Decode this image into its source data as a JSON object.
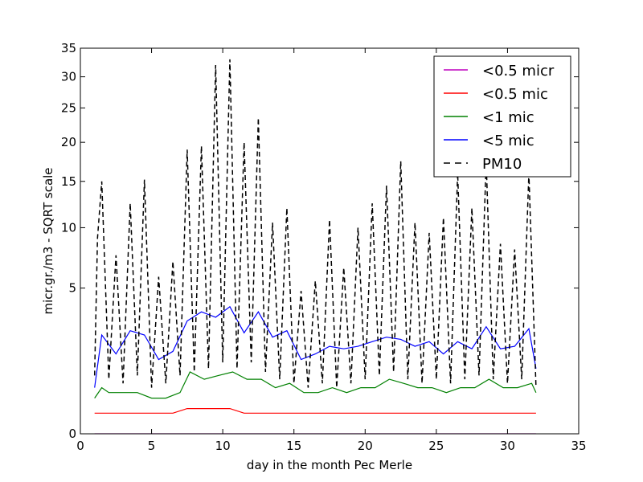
{
  "chart_data": {
    "type": "line",
    "xlabel": "day in the month Pec Merle",
    "ylabel": "micr.gr./m3 - SQRT scale",
    "y_scale": "sqrt",
    "xlim": [
      0,
      35
    ],
    "ylim": [
      0,
      35
    ],
    "x_ticks": [
      "0",
      "5",
      "10",
      "15",
      "20",
      "25",
      "30",
      "35"
    ],
    "y_ticks": [
      "0",
      "5",
      "10",
      "15",
      "20",
      "25",
      "30",
      "35"
    ],
    "legend_position": "top-right",
    "grid": false,
    "series": [
      {
        "name": "<0.5 micr",
        "color": "#bf00bf",
        "style": "solid",
        "x": [
          1.0,
          32.0
        ],
        "values": [
          0.0,
          0.0
        ]
      },
      {
        "name": "<0.5 mic",
        "color": "#ff0000",
        "style": "solid",
        "x": [
          1.0,
          1.5,
          2.5,
          3.5,
          4.5,
          5.5,
          6.5,
          7.5,
          8.5,
          9.5,
          10.5,
          11.5,
          12.5,
          13.5,
          14.5,
          15.5,
          16.5,
          17.5,
          18.5,
          19.5,
          20.5,
          21.5,
          22.5,
          23.5,
          24.5,
          25.5,
          26.5,
          27.5,
          28.5,
          29.5,
          30.5,
          31.5,
          32.0
        ],
        "values": [
          0.1,
          0.1,
          0.1,
          0.1,
          0.1,
          0.1,
          0.1,
          0.15,
          0.15,
          0.15,
          0.15,
          0.1,
          0.1,
          0.1,
          0.1,
          0.1,
          0.1,
          0.1,
          0.1,
          0.1,
          0.1,
          0.1,
          0.1,
          0.1,
          0.1,
          0.1,
          0.1,
          0.1,
          0.1,
          0.1,
          0.1,
          0.1,
          0.1
        ]
      },
      {
        "name": "<1 mic",
        "color": "#008000",
        "style": "solid",
        "x": [
          1.0,
          1.5,
          2.0,
          3.0,
          4.0,
          5.0,
          6.0,
          7.0,
          7.7,
          8.7,
          9.7,
          10.7,
          11.7,
          12.7,
          13.7,
          14.7,
          15.7,
          16.7,
          17.7,
          18.7,
          19.7,
          20.7,
          21.7,
          22.7,
          23.7,
          24.7,
          25.7,
          26.7,
          27.7,
          28.7,
          29.7,
          30.7,
          31.7,
          32.0
        ],
        "values": [
          0.3,
          0.5,
          0.4,
          0.4,
          0.4,
          0.3,
          0.3,
          0.4,
          0.9,
          0.7,
          0.8,
          0.9,
          0.7,
          0.7,
          0.5,
          0.6,
          0.4,
          0.4,
          0.5,
          0.4,
          0.5,
          0.5,
          0.7,
          0.6,
          0.5,
          0.5,
          0.4,
          0.5,
          0.5,
          0.7,
          0.5,
          0.5,
          0.6,
          0.4
        ]
      },
      {
        "name": "<5 mic",
        "color": "#0000ff",
        "style": "solid",
        "x": [
          1.0,
          1.5,
          2.5,
          3.5,
          4.5,
          5.5,
          6.5,
          7.5,
          8.5,
          9.5,
          10.5,
          11.5,
          12.5,
          13.5,
          14.5,
          15.5,
          16.5,
          17.5,
          18.5,
          19.5,
          20.5,
          21.5,
          22.5,
          23.5,
          24.5,
          25.5,
          26.5,
          27.5,
          28.5,
          29.5,
          30.5,
          31.5,
          32.0
        ],
        "values": [
          0.5,
          2.3,
          1.5,
          2.5,
          2.3,
          1.3,
          1.6,
          3.0,
          3.5,
          3.2,
          3.8,
          2.4,
          3.5,
          2.2,
          2.5,
          1.3,
          1.5,
          1.8,
          1.7,
          1.8,
          2.0,
          2.2,
          2.1,
          1.8,
          2.0,
          1.5,
          2.0,
          1.7,
          2.7,
          1.7,
          1.8,
          2.6,
          1.0
        ]
      },
      {
        "name": "PM10",
        "color": "#000000",
        "style": "dashed",
        "x": [
          1.0,
          1.2,
          1.5,
          2.0,
          2.5,
          3.0,
          3.5,
          4.0,
          4.5,
          5.0,
          5.5,
          6.0,
          6.5,
          7.0,
          7.5,
          8.0,
          8.5,
          9.0,
          9.5,
          10.0,
          10.5,
          11.0,
          11.5,
          12.0,
          12.5,
          13.0,
          13.5,
          14.0,
          14.5,
          15.0,
          15.5,
          16.0,
          16.5,
          17.0,
          17.5,
          18.0,
          18.5,
          19.0,
          19.5,
          20.0,
          20.5,
          21.0,
          21.5,
          22.0,
          22.5,
          23.0,
          23.5,
          24.0,
          24.5,
          25.0,
          25.5,
          26.0,
          26.5,
          27.0,
          27.5,
          28.0,
          28.5,
          29.0,
          29.5,
          30.0,
          30.5,
          31.0,
          31.5,
          32.0
        ],
        "values": [
          0.8,
          9.0,
          15.0,
          0.7,
          7.5,
          0.6,
          12.5,
          0.8,
          15.2,
          0.5,
          5.8,
          0.6,
          7.0,
          0.8,
          19.0,
          0.9,
          19.5,
          1.0,
          32.0,
          1.2,
          33.0,
          1.0,
          20.0,
          1.2,
          23.5,
          0.9,
          10.5,
          0.7,
          12.0,
          0.6,
          4.8,
          0.5,
          5.5,
          0.6,
          10.8,
          0.5,
          6.5,
          0.6,
          10.0,
          0.7,
          12.5,
          0.8,
          14.5,
          0.9,
          17.5,
          0.7,
          10.5,
          0.6,
          9.5,
          0.7,
          11.0,
          0.6,
          16.0,
          0.7,
          12.0,
          0.8,
          17.5,
          0.7,
          8.5,
          0.6,
          8.0,
          0.7,
          16.0,
          0.5
        ]
      }
    ]
  }
}
